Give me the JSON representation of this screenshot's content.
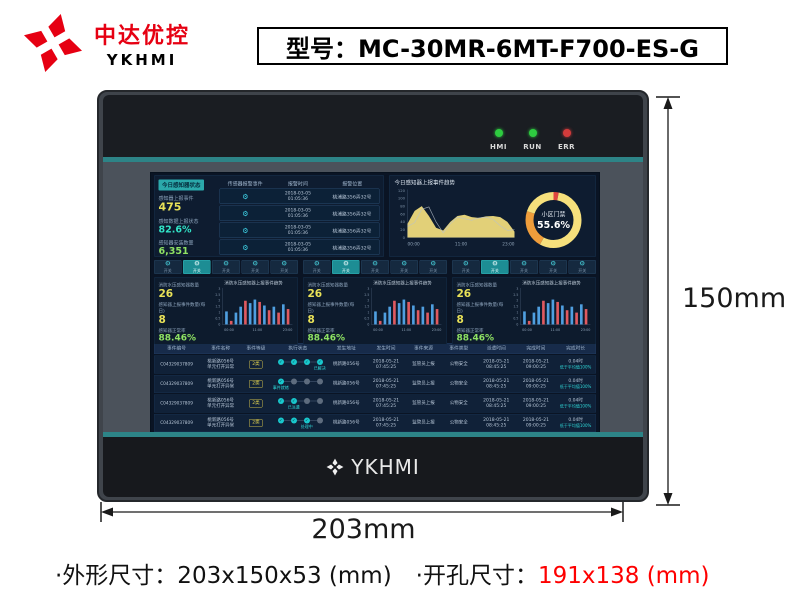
{
  "page": {
    "brand_cn": "中达优控",
    "brand_en": "YKHMI",
    "model_label": "型号：MC-30MR-6MT-F700-ES-G",
    "dim_height": "150mm",
    "dim_width": "203mm",
    "footer": {
      "outline": "·外形尺寸：203x150x53 (mm)",
      "cutout_label": "·开孔尺寸：",
      "cutout_value": "191x138 (mm)"
    },
    "colors": {
      "brand_red": "#e60012",
      "accent_teal": "#2d8487",
      "dim_red": "#fe0000"
    }
  },
  "device": {
    "leds": [
      {
        "label": "HMI",
        "color": "#2ecc40"
      },
      {
        "label": "RUN",
        "color": "#2ecc40"
      },
      {
        "label": "ERR",
        "color": "#d43b3b"
      }
    ],
    "bottom_logo_text": "YKHMI"
  },
  "screen": {
    "status_panel": {
      "title": "今日感知器状态",
      "stats": [
        {
          "label": "感知器上报事件",
          "value": "475",
          "color": "#e9e258"
        },
        {
          "label": "感知数据上报状态",
          "value": "82.6%",
          "color": "#31e2c6"
        },
        {
          "label": "感知器安装数量",
          "value": "6,351",
          "color": "#8fe263"
        }
      ]
    },
    "alarm_table": {
      "headers": [
        "传感器报警事件",
        "报警时间",
        "报警位置"
      ],
      "rows": [
        {
          "time": [
            "2018-03-05",
            "01:05:36"
          ],
          "location": "桃浦路356弄32号"
        },
        {
          "time": [
            "2018-03-05",
            "01:05:36"
          ],
          "location": "桃浦路356弄32号"
        },
        {
          "time": [
            "2018-03-05",
            "01:05:36"
          ],
          "location": "桃浦路356弄32号"
        },
        {
          "time": [
            "2018-03-05",
            "01:05:36"
          ],
          "location": "桃浦路356弄32号"
        }
      ]
    },
    "sensor_columns": [
      {
        "toggles": {
          "count": 5,
          "active_index": 1,
          "label": "开关"
        },
        "stats": [
          {
            "label": "消防水压感知器数量",
            "value": "26"
          },
          {
            "label": "感知器上报事件数量(每日)",
            "value": "8"
          },
          {
            "label": "感知器正常率",
            "value": "88.46%"
          }
        ]
      },
      {
        "toggles": {
          "count": 5,
          "active_index": 1,
          "label": "开关"
        },
        "stats": [
          {
            "label": "消防水压感知器数量",
            "value": "26"
          },
          {
            "label": "感知器上报事件数量(每日)",
            "value": "8"
          },
          {
            "label": "感知器正常率",
            "value": "88.46%"
          }
        ]
      },
      {
        "toggles": {
          "count": 5,
          "active_index": 1,
          "label": "开关"
        },
        "stats": [
          {
            "label": "消防水压感知器数量",
            "value": "26"
          },
          {
            "label": "感知器上报事件数量(每日)",
            "value": "8"
          },
          {
            "label": "感知器正常率",
            "value": "88.46%"
          }
        ]
      }
    ],
    "event_table": {
      "headers": [
        "事件编号",
        "事件名称",
        "事件等级",
        "执行状态",
        "发生地址",
        "发生时间",
        "事件来源",
        "事件类型",
        "派遣时间",
        "完成时间",
        "完成时长"
      ],
      "rows": [
        {
          "id": "C04329037809",
          "name": [
            "桃新路056号",
            "单元打开异常"
          ],
          "level": "2类",
          "steps": {
            "done": 4,
            "label": "已解决",
            "pos": 3
          },
          "address": "桃新路056号",
          "occur": [
            "2018-05-21",
            "07:45:25"
          ],
          "source": "监管员上报",
          "type": "公物安全",
          "dispatch": [
            "2018-05-21",
            "08:45:25"
          ],
          "finish": [
            "2018-05-21",
            "09:00:25"
          ],
          "duration": "0.04时",
          "duration_note": "低于平均值100%"
        },
        {
          "id": "C04329037809",
          "name": [
            "桃新路056号",
            "单元打开异常"
          ],
          "level": "2类",
          "steps": {
            "done": 1,
            "label": "事件就绪",
            "pos": 0
          },
          "address": "桃新路056号",
          "occur": [
            "2018-05-21",
            "07:45:25"
          ],
          "source": "监管员上报",
          "type": "公物安全",
          "dispatch": [
            "2018-05-21",
            "08:45:25"
          ],
          "finish": [
            "2018-05-21",
            "09:00:25"
          ],
          "duration": "0.04时",
          "duration_note": "低于平均值100%"
        },
        {
          "id": "C04329037809",
          "name": [
            "桃新路056号",
            "单元打开异常"
          ],
          "level": "2类",
          "steps": {
            "done": 2,
            "label": "已派遣",
            "pos": 1
          },
          "address": "桃新路056号",
          "occur": [
            "2018-05-21",
            "07:45:25"
          ],
          "source": "监管员上报",
          "type": "公物安全",
          "dispatch": [
            "2018-05-21",
            "08:45:25"
          ],
          "finish": [
            "2018-05-21",
            "09:00:25"
          ],
          "duration": "0.04时",
          "duration_note": "低于平均值100%"
        },
        {
          "id": "C04329037809",
          "name": [
            "桃新路056号",
            "单元打开异常"
          ],
          "level": "2类",
          "steps": {
            "done": 3,
            "label": "处理中",
            "pos": 2
          },
          "address": "桃新路056号",
          "occur": [
            "2018-05-21",
            "07:45:25"
          ],
          "source": "监管员上报",
          "type": "公物安全",
          "dispatch": [
            "2018-05-21",
            "08:45:25"
          ],
          "finish": [
            "2018-05-21",
            "09:00:25"
          ],
          "duration": "0.04时",
          "duration_note": "低于平均值100%"
        }
      ]
    }
  },
  "chart_data": [
    {
      "type": "area",
      "title": "今日感知器上报事件趋势",
      "ylim": [
        0,
        120
      ],
      "y_ticks": [
        0,
        20,
        40,
        60,
        80,
        100,
        120
      ],
      "x_ticks": [
        "00:00",
        "11:00",
        "23:00"
      ],
      "series": [
        {
          "name": "area",
          "color": "#f4e07f",
          "values": [
            35,
            68,
            80,
            55,
            25,
            18,
            40,
            55,
            58,
            52,
            50,
            54,
            55,
            52,
            40,
            15
          ]
        },
        {
          "name": "line",
          "color": "#b9c2cb",
          "values": [
            28,
            38,
            72,
            78,
            40,
            12,
            35,
            52,
            48,
            44,
            50,
            52,
            46,
            30,
            18,
            20
          ]
        }
      ]
    },
    {
      "type": "donut",
      "label": "小区门禁",
      "value": "55.6%",
      "segments": [
        {
          "color": "#e0453f",
          "pct": 3
        },
        {
          "color": "#f6e07c",
          "pct": 55
        },
        {
          "color": "#ef9d3b",
          "pct": 22
        },
        {
          "color": "#f6e07c",
          "pct": 20
        }
      ]
    },
    {
      "type": "bar",
      "title": "消防水压感知器上报事件趋势",
      "ylim": [
        0,
        3
      ],
      "y_ticks": [
        0,
        0.5,
        1,
        1.5,
        2,
        2.5,
        3
      ],
      "x_ticks": [
        "00:00",
        "11:00",
        "23:00"
      ],
      "bars": [
        {
          "v": 1.1,
          "color": "#4f9fe0"
        },
        {
          "v": 0.3,
          "color": "#e05a60"
        },
        {
          "v": 1.0,
          "color": "#4f9fe0"
        },
        {
          "v": 1.5,
          "color": "#4f9fe0"
        },
        {
          "v": 2.0,
          "color": "#e05a60"
        },
        {
          "v": 1.8,
          "color": "#4f9fe0"
        },
        {
          "v": 2.1,
          "color": "#4f9fe0"
        },
        {
          "v": 1.9,
          "color": "#e05a60"
        },
        {
          "v": 1.6,
          "color": "#4f9fe0"
        },
        {
          "v": 1.2,
          "color": "#e05a60"
        },
        {
          "v": 1.5,
          "color": "#4f9fe0"
        },
        {
          "v": 1.0,
          "color": "#e05a60"
        },
        {
          "v": 1.7,
          "color": "#4f9fe0"
        },
        {
          "v": 1.3,
          "color": "#e05a60"
        }
      ]
    }
  ]
}
